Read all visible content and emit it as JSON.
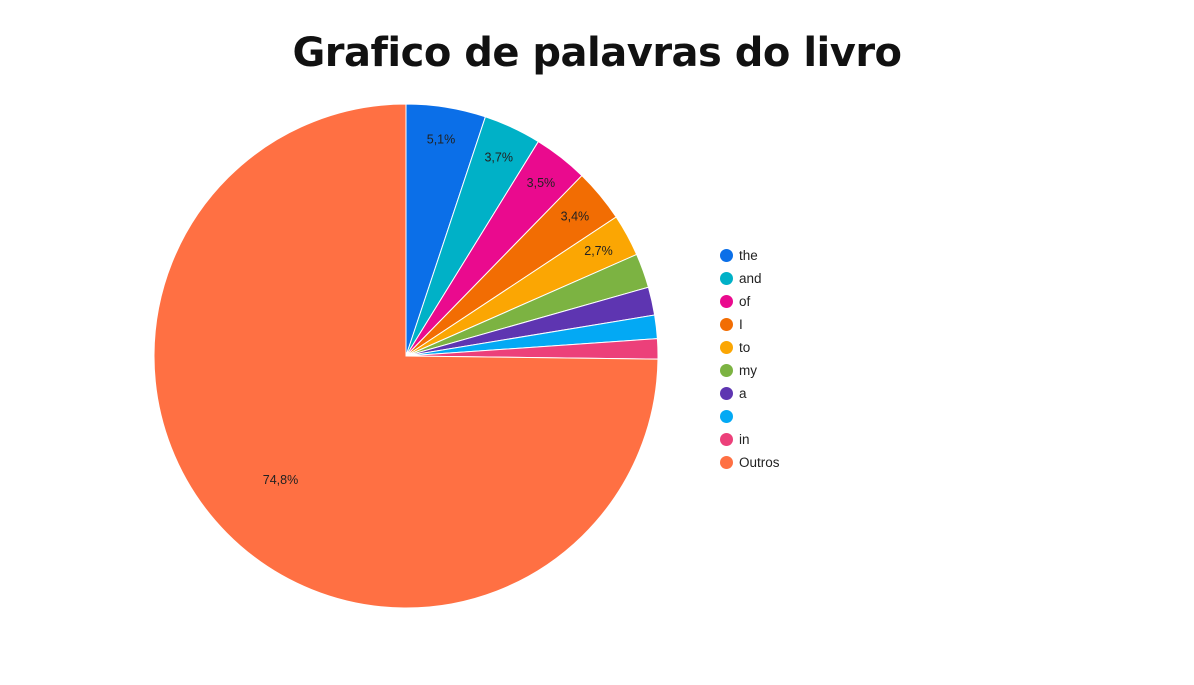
{
  "chart_data": {
    "type": "pie",
    "title": "Grafico de palavras do livro",
    "start_angle_deg": 0,
    "direction": "clockwise",
    "legend_position": "right",
    "slices": [
      {
        "label": "the",
        "value": 5.1,
        "color": "#0b6fe8",
        "data_label": "5,1%"
      },
      {
        "label": "and",
        "value": 3.7,
        "color": "#00b1c7",
        "data_label": "3,7%"
      },
      {
        "label": "of",
        "value": 3.5,
        "color": "#ea0a8e",
        "data_label": "3,5%"
      },
      {
        "label": "I",
        "value": 3.4,
        "color": "#f26d03",
        "data_label": "3,4%"
      },
      {
        "label": "to",
        "value": 2.7,
        "color": "#fba603",
        "data_label": "2,7%"
      },
      {
        "label": "my",
        "value": 2.2,
        "color": "#7cb342",
        "data_label": ""
      },
      {
        "label": "a",
        "value": 1.8,
        "color": "#5e35b1",
        "data_label": ""
      },
      {
        "label": "",
        "value": 1.5,
        "color": "#03a9f4",
        "data_label": ""
      },
      {
        "label": "in",
        "value": 1.3,
        "color": "#ec407a",
        "data_label": ""
      },
      {
        "label": "Outros",
        "value": 74.8,
        "color": "#ff7043",
        "data_label": "74,8%"
      }
    ]
  }
}
